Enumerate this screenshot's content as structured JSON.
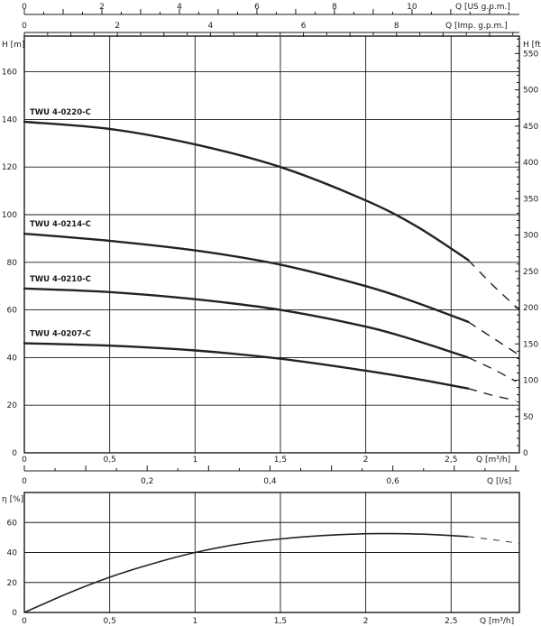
{
  "chart_data": [
    {
      "type": "line",
      "title": "",
      "xlabel": "Q [m³/h]",
      "ylabel": "H [m]",
      "ylabel_right": "H [ft]",
      "xlim": [
        0,
        2.9
      ],
      "ylim": [
        0,
        175
      ],
      "ylim_right_ft": [
        0,
        574
      ],
      "grid": true,
      "x_ticks": [
        "0",
        "0,5",
        "1",
        "1,5",
        "2",
        "2,5"
      ],
      "y_ticks": [
        "0",
        "20",
        "40",
        "60",
        "80",
        "100",
        "120",
        "140",
        "160"
      ],
      "y_ticks_right": [
        "0",
        "50",
        "100",
        "150",
        "200",
        "250",
        "300",
        "350",
        "400",
        "450",
        "500",
        "550"
      ],
      "top_axis_us": {
        "label": "Q [US g.p.m.]",
        "ticks": [
          "0",
          "2",
          "4",
          "6",
          "8",
          "10"
        ],
        "max": 12.77
      },
      "top_axis_imp": {
        "label": "Q [Imp. g.p.m.]",
        "ticks": [
          "0",
          "2",
          "4",
          "6",
          "8"
        ],
        "max": 10.64
      },
      "bottom_axis_ls": {
        "label": "Q [l/s]",
        "ticks": [
          "0",
          "0,2",
          "0,4",
          "0,6"
        ],
        "max": 0.806
      },
      "series": [
        {
          "name": "TWU 4-0220-C",
          "x": [
            0,
            0.5,
            1.0,
            1.5,
            2.0,
            2.3,
            2.6
          ],
          "y": [
            139,
            136,
            129.5,
            120,
            106,
            95,
            81
          ],
          "dashed_x": [
            2.6,
            2.75,
            2.9
          ],
          "dashed_y": [
            81,
            70,
            60
          ]
        },
        {
          "name": "TWU 4-0214-C",
          "x": [
            0,
            0.5,
            1.0,
            1.5,
            2.0,
            2.3,
            2.6
          ],
          "y": [
            92,
            89,
            85,
            79,
            70,
            63,
            55
          ],
          "dashed_x": [
            2.6,
            2.75,
            2.9
          ],
          "dashed_y": [
            55,
            48,
            41
          ]
        },
        {
          "name": "TWU 4-0210-C",
          "x": [
            0,
            0.5,
            1.0,
            1.5,
            2.0,
            2.3,
            2.6
          ],
          "y": [
            69,
            67.5,
            64.5,
            60,
            53,
            47,
            40
          ],
          "dashed_x": [
            2.6,
            2.75,
            2.88
          ],
          "dashed_y": [
            40,
            35,
            30
          ]
        },
        {
          "name": "TWU 4-0207-C",
          "x": [
            0,
            0.5,
            1.0,
            1.5,
            2.0,
            2.3,
            2.6
          ],
          "y": [
            46,
            45,
            43,
            39.5,
            34.5,
            31,
            27
          ],
          "dashed_x": [
            2.6,
            2.75,
            2.88
          ],
          "dashed_y": [
            27,
            24,
            22
          ]
        }
      ]
    },
    {
      "type": "line",
      "title": "",
      "xlabel": "Q [m³/h]",
      "ylabel": "η [%]",
      "xlim": [
        0,
        2.9
      ],
      "ylim": [
        0,
        80
      ],
      "grid": true,
      "x_ticks": [
        "0",
        "0,5",
        "1",
        "1,5",
        "2",
        "2,5"
      ],
      "y_ticks": [
        "0",
        "20",
        "40",
        "60"
      ],
      "series": [
        {
          "x": [
            0,
            0.25,
            0.5,
            0.75,
            1.0,
            1.25,
            1.5,
            1.75,
            2.0,
            2.15,
            2.3,
            2.45,
            2.6
          ],
          "y": [
            0,
            12.5,
            23.5,
            32.5,
            40,
            45.5,
            49,
            51.3,
            52.5,
            52.6,
            52.3,
            51.6,
            50.6
          ],
          "dashed_x": [
            2.6,
            2.75,
            2.9
          ],
          "dashed_y": [
            50.6,
            48.5,
            46
          ]
        }
      ]
    }
  ]
}
